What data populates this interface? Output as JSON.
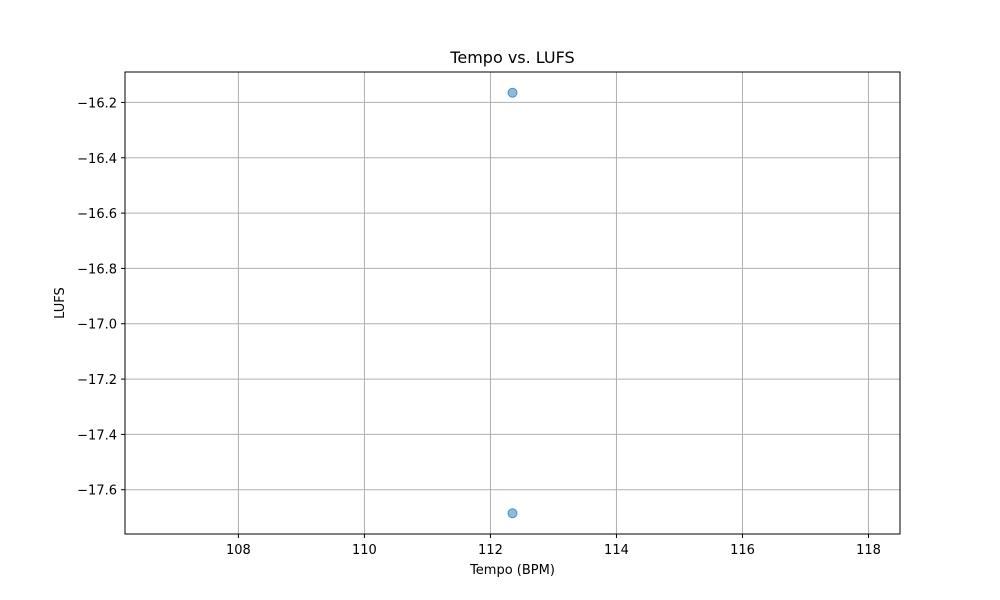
{
  "chart_data": {
    "type": "scatter",
    "title": "Tempo vs. LUFS",
    "xlabel": "Tempo (BPM)",
    "ylabel": "LUFS",
    "xlim": [
      106.2,
      118.5
    ],
    "ylim": [
      -17.76,
      -16.09
    ],
    "xticks": [
      108,
      110,
      112,
      114,
      116,
      118
    ],
    "xtick_labels": [
      "108",
      "110",
      "112",
      "114",
      "116",
      "118"
    ],
    "yticks": [
      -16.2,
      -16.4,
      -16.6,
      -16.8,
      -17.0,
      -17.2,
      -17.4,
      -17.6
    ],
    "ytick_labels": [
      "−16.2",
      "−16.4",
      "−16.6",
      "−16.8",
      "−17.0",
      "−17.2",
      "−17.4",
      "−17.6"
    ],
    "grid": true,
    "points": [
      {
        "x": 112.35,
        "y": -16.165
      },
      {
        "x": 112.35,
        "y": -17.685
      }
    ],
    "marker_color": "#1f77b4",
    "marker_alpha": 0.5
  }
}
